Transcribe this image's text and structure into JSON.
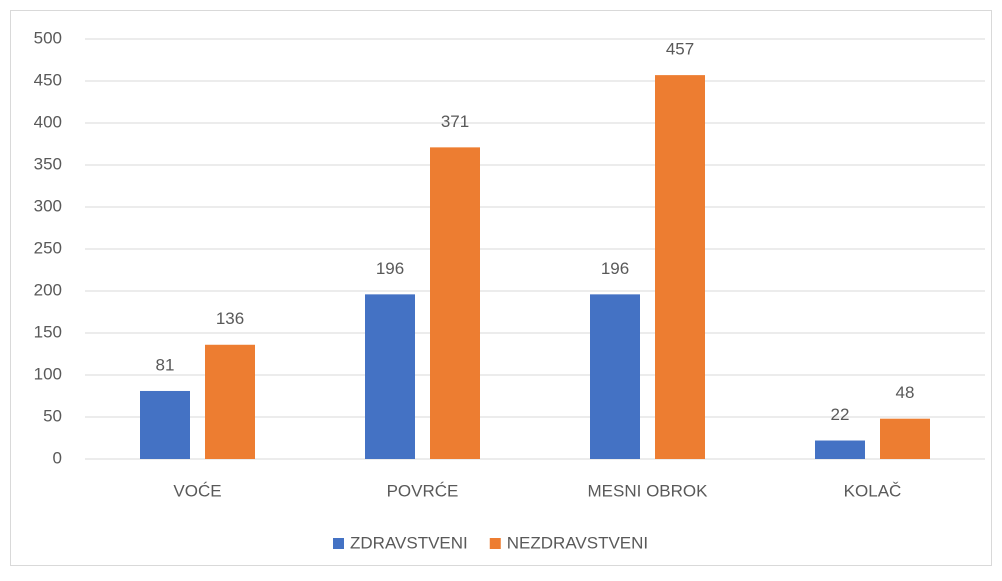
{
  "chart_data": {
    "type": "bar",
    "categories": [
      "VOĆE",
      "POVRĆE",
      "MESNI OBROK",
      "KOLAČ"
    ],
    "series": [
      {
        "name": "ZDRAVSTVENI",
        "color": "#4472c4",
        "values": [
          81,
          196,
          196,
          22
        ]
      },
      {
        "name": "NEZDRAVSTVENI",
        "color": "#ed7d31",
        "values": [
          136,
          371,
          457,
          48
        ]
      }
    ],
    "ylim": [
      0,
      500
    ],
    "yticks": [
      0,
      50,
      100,
      150,
      200,
      250,
      300,
      350,
      400,
      450,
      500
    ],
    "grid": true,
    "legend": "bottom"
  }
}
